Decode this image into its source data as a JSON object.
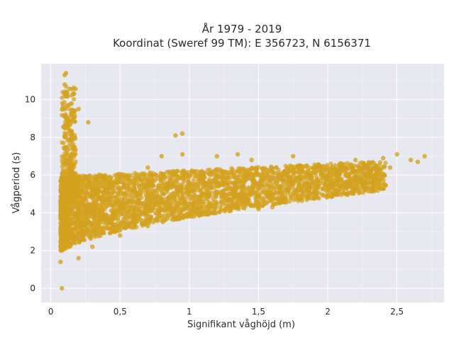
{
  "chart_data": {
    "type": "scatter",
    "title": [
      "År 1979 - 2019",
      "Koordinat (Sweref 99 TM): E 356723, N 6156371"
    ],
    "xlabel": "Signifikant våghöjd (m)",
    "ylabel": "Vågperiod (s)",
    "xlim": [
      -0.07,
      2.84
    ],
    "ylim": [
      -0.75,
      11.9
    ],
    "x_ticks": [
      0,
      0.5,
      1,
      1.5,
      2,
      2.5
    ],
    "x_tick_labels": [
      "0",
      "0,5",
      "1",
      "1,5",
      "2",
      "2,5"
    ],
    "y_ticks": [
      0,
      2,
      4,
      6,
      8,
      10
    ],
    "y_tick_labels": [
      "0",
      "2",
      "4",
      "6",
      "8",
      "10"
    ],
    "grid": true,
    "point_color": "#d4a21f",
    "background_color": "#e8e8f0",
    "points": [
      [
        0.08,
        0.0
      ],
      [
        0.07,
        1.4
      ],
      [
        0.08,
        2.2
      ],
      [
        0.09,
        3.0
      ],
      [
        0.1,
        4.5
      ],
      [
        0.1,
        7.0
      ],
      [
        0.11,
        8.0
      ],
      [
        0.1,
        9.5
      ],
      [
        0.1,
        10.3
      ],
      [
        0.1,
        11.3
      ],
      [
        0.11,
        11.4
      ],
      [
        0.1,
        10.8
      ],
      [
        0.12,
        9.7
      ],
      [
        0.15,
        9.2
      ],
      [
        0.2,
        9.5
      ],
      [
        0.27,
        8.8
      ],
      [
        0.15,
        6.5
      ],
      [
        0.2,
        5.5
      ],
      [
        0.3,
        4.0
      ],
      [
        0.4,
        3.2
      ],
      [
        0.5,
        4.5
      ],
      [
        0.6,
        4.0
      ],
      [
        0.7,
        5.0
      ],
      [
        0.8,
        4.2
      ],
      [
        0.9,
        8.1
      ],
      [
        0.95,
        8.2
      ],
      [
        0.95,
        7.1
      ],
      [
        0.8,
        7.0
      ],
      [
        0.7,
        6.4
      ],
      [
        1.0,
        5.1
      ],
      [
        1.1,
        4.6
      ],
      [
        1.2,
        5.4
      ],
      [
        1.3,
        5.0
      ],
      [
        1.4,
        6.2
      ],
      [
        1.5,
        5.3
      ],
      [
        1.6,
        5.8
      ],
      [
        1.7,
        6.0
      ],
      [
        1.75,
        7.0
      ],
      [
        1.8,
        6.4
      ],
      [
        1.9,
        6.2
      ],
      [
        2.0,
        6.0
      ],
      [
        2.1,
        6.5
      ],
      [
        2.2,
        6.8
      ],
      [
        2.3,
        6.6
      ],
      [
        2.4,
        6.9
      ],
      [
        2.45,
        6.4
      ],
      [
        2.5,
        7.1
      ],
      [
        2.6,
        6.8
      ],
      [
        2.65,
        6.7
      ],
      [
        2.7,
        7.0
      ],
      [
        1.5,
        4.2
      ],
      [
        1.6,
        4.3
      ],
      [
        1.2,
        7.0
      ],
      [
        1.35,
        7.1
      ],
      [
        1.45,
        6.8
      ],
      [
        0.2,
        1.6
      ],
      [
        0.3,
        2.2
      ],
      [
        0.5,
        2.8
      ],
      [
        0.7,
        3.3
      ],
      [
        1.0,
        3.9
      ]
    ]
  }
}
